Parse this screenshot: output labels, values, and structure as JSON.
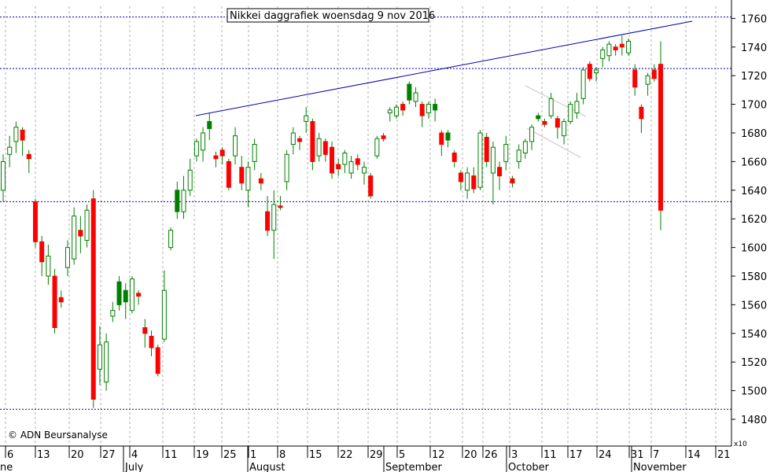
{
  "title": "Nikkei daggrafiek woensdag 9 nov 2016",
  "credit": "© ADN Beursanalyse",
  "scale_note": "x10",
  "colors": {
    "up_fill": "#ffffff",
    "up_fill_strong": "#008000",
    "down_fill": "#ff0000",
    "wick": "#008000",
    "trend": "#0000aa",
    "hline": "#0000aa",
    "grid": "#b0b0b0",
    "channel": "#c8c8c8"
  },
  "chart_data": {
    "type": "candlestick",
    "title": "Nikkei daggrafiek woensdag 9 nov 2016",
    "ylim": [
      1465,
      1770
    ],
    "y_ticks": [
      1480,
      1500,
      1520,
      1540,
      1560,
      1580,
      1600,
      1620,
      1640,
      1660,
      1680,
      1700,
      1720,
      1740,
      1760
    ],
    "x_tick_labels": [
      "6",
      "13",
      "20",
      "27",
      "4",
      "11",
      "19",
      "25",
      "1",
      "8",
      "15",
      "22",
      "29",
      "5",
      "12",
      "20",
      "26",
      "3",
      "11",
      "17",
      "24",
      "31",
      "7",
      "14",
      "21"
    ],
    "month_labels": [
      "ne",
      "July",
      "August",
      "September",
      "October",
      "November"
    ],
    "horizontal_levels": [
      1761,
      1725,
      1632,
      1487
    ],
    "trendline": {
      "from": {
        "date": "2016-07-20",
        "value": 1693
      },
      "to": {
        "date": "2016-11-16",
        "value": 1757
      }
    },
    "candles": [
      {
        "o": 1640,
        "h": 1665,
        "l": 1632,
        "c": 1660,
        "s": "up"
      },
      {
        "o": 1665,
        "h": 1678,
        "l": 1656,
        "c": 1670,
        "s": "up"
      },
      {
        "o": 1674,
        "h": 1688,
        "l": 1666,
        "c": 1684,
        "s": "up"
      },
      {
        "o": 1682,
        "h": 1684,
        "l": 1664,
        "c": 1675,
        "s": "down"
      },
      {
        "o": 1665,
        "h": 1668,
        "l": 1652,
        "c": 1662,
        "s": "down"
      },
      {
        "o": 1632,
        "h": 1634,
        "l": 1600,
        "c": 1604,
        "s": "down"
      },
      {
        "o": 1604,
        "h": 1608,
        "l": 1580,
        "c": 1590,
        "s": "down"
      },
      {
        "o": 1580,
        "h": 1602,
        "l": 1574,
        "c": 1594,
        "s": "up"
      },
      {
        "o": 1580,
        "h": 1585,
        "l": 1540,
        "c": 1544,
        "s": "down"
      },
      {
        "o": 1565,
        "h": 1570,
        "l": 1558,
        "c": 1562,
        "s": "down"
      },
      {
        "o": 1586,
        "h": 1605,
        "l": 1580,
        "c": 1600,
        "s": "up"
      },
      {
        "o": 1592,
        "h": 1628,
        "l": 1588,
        "c": 1622,
        "s": "up"
      },
      {
        "o": 1612,
        "h": 1622,
        "l": 1596,
        "c": 1608,
        "s": "down"
      },
      {
        "o": 1605,
        "h": 1630,
        "l": 1600,
        "c": 1626,
        "s": "up"
      },
      {
        "o": 1634,
        "h": 1640,
        "l": 1488,
        "c": 1494,
        "s": "down"
      },
      {
        "o": 1515,
        "h": 1545,
        "l": 1504,
        "c": 1532,
        "s": "up"
      },
      {
        "o": 1506,
        "h": 1540,
        "l": 1500,
        "c": 1534,
        "s": "up"
      },
      {
        "o": 1552,
        "h": 1562,
        "l": 1548,
        "c": 1556,
        "s": "up"
      },
      {
        "o": 1560,
        "h": 1580,
        "l": 1556,
        "c": 1576,
        "s": "up",
        "strong": true
      },
      {
        "o": 1562,
        "h": 1575,
        "l": 1550,
        "c": 1570,
        "s": "up",
        "strong": true
      },
      {
        "o": 1556,
        "h": 1580,
        "l": 1554,
        "c": 1578,
        "s": "up"
      },
      {
        "o": 1568,
        "h": 1570,
        "l": 1560,
        "c": 1566,
        "s": "down"
      },
      {
        "o": 1544,
        "h": 1550,
        "l": 1530,
        "c": 1540,
        "s": "down"
      },
      {
        "o": 1538,
        "h": 1542,
        "l": 1524,
        "c": 1530,
        "s": "down"
      },
      {
        "o": 1530,
        "h": 1532,
        "l": 1510,
        "c": 1512,
        "s": "down"
      },
      {
        "o": 1536,
        "h": 1584,
        "l": 1534,
        "c": 1570,
        "s": "up"
      },
      {
        "o": 1600,
        "h": 1614,
        "l": 1598,
        "c": 1612,
        "s": "up"
      },
      {
        "o": 1625,
        "h": 1646,
        "l": 1620,
        "c": 1640,
        "s": "up",
        "strong": true
      },
      {
        "o": 1625,
        "h": 1650,
        "l": 1620,
        "c": 1640,
        "s": "up"
      },
      {
        "o": 1640,
        "h": 1662,
        "l": 1636,
        "c": 1654,
        "s": "up"
      },
      {
        "o": 1664,
        "h": 1676,
        "l": 1660,
        "c": 1674,
        "s": "up"
      },
      {
        "o": 1668,
        "h": 1684,
        "l": 1660,
        "c": 1680,
        "s": "up"
      },
      {
        "o": 1688,
        "h": 1694,
        "l": 1675,
        "c": 1683,
        "s": "up",
        "strong": true
      },
      {
        "o": 1664,
        "h": 1667,
        "l": 1656,
        "c": 1662,
        "s": "down"
      },
      {
        "o": 1668,
        "h": 1670,
        "l": 1658,
        "c": 1664,
        "s": "down"
      },
      {
        "o": 1660,
        "h": 1662,
        "l": 1640,
        "c": 1642,
        "s": "down"
      },
      {
        "o": 1664,
        "h": 1684,
        "l": 1658,
        "c": 1678,
        "s": "up"
      },
      {
        "o": 1656,
        "h": 1664,
        "l": 1640,
        "c": 1645,
        "s": "down"
      },
      {
        "o": 1640,
        "h": 1660,
        "l": 1628,
        "c": 1656,
        "s": "up"
      },
      {
        "o": 1660,
        "h": 1676,
        "l": 1654,
        "c": 1672,
        "s": "up"
      },
      {
        "o": 1648,
        "h": 1652,
        "l": 1640,
        "c": 1645,
        "s": "down"
      },
      {
        "o": 1625,
        "h": 1636,
        "l": 1608,
        "c": 1612,
        "s": "down"
      },
      {
        "o": 1612,
        "h": 1640,
        "l": 1592,
        "c": 1630,
        "s": "up"
      },
      {
        "o": 1628,
        "h": 1636,
        "l": 1626,
        "c": 1629,
        "s": "down"
      },
      {
        "o": 1646,
        "h": 1668,
        "l": 1640,
        "c": 1665,
        "s": "up"
      },
      {
        "o": 1672,
        "h": 1684,
        "l": 1665,
        "c": 1680,
        "s": "up"
      },
      {
        "o": 1676,
        "h": 1678,
        "l": 1668,
        "c": 1674,
        "s": "down"
      },
      {
        "o": 1692,
        "h": 1698,
        "l": 1680,
        "c": 1688,
        "s": "up"
      },
      {
        "o": 1688,
        "h": 1690,
        "l": 1654,
        "c": 1660,
        "s": "down"
      },
      {
        "o": 1676,
        "h": 1680,
        "l": 1660,
        "c": 1664,
        "s": "up"
      },
      {
        "o": 1674,
        "h": 1676,
        "l": 1660,
        "c": 1665,
        "s": "down"
      },
      {
        "o": 1670,
        "h": 1674,
        "l": 1648,
        "c": 1652,
        "s": "down"
      },
      {
        "o": 1658,
        "h": 1662,
        "l": 1650,
        "c": 1655,
        "s": "down"
      },
      {
        "o": 1658,
        "h": 1668,
        "l": 1652,
        "c": 1666,
        "s": "up"
      },
      {
        "o": 1660,
        "h": 1664,
        "l": 1648,
        "c": 1652,
        "s": "up"
      },
      {
        "o": 1658,
        "h": 1665,
        "l": 1654,
        "c": 1662,
        "s": "down"
      },
      {
        "o": 1652,
        "h": 1660,
        "l": 1644,
        "c": 1656,
        "s": "up"
      },
      {
        "o": 1650,
        "h": 1652,
        "l": 1634,
        "c": 1636,
        "s": "down"
      },
      {
        "o": 1664,
        "h": 1678,
        "l": 1662,
        "c": 1676,
        "s": "up"
      },
      {
        "o": 1676,
        "h": 1680,
        "l": 1674,
        "c": 1678,
        "s": "down"
      },
      {
        "o": 1694,
        "h": 1698,
        "l": 1688,
        "c": 1696,
        "s": "up"
      },
      {
        "o": 1692,
        "h": 1700,
        "l": 1690,
        "c": 1698,
        "s": "up"
      },
      {
        "o": 1700,
        "h": 1702,
        "l": 1692,
        "c": 1696,
        "s": "down"
      },
      {
        "o": 1703,
        "h": 1716,
        "l": 1700,
        "c": 1714,
        "s": "up",
        "strong": true
      },
      {
        "o": 1702,
        "h": 1712,
        "l": 1698,
        "c": 1708,
        "s": "up"
      },
      {
        "o": 1700,
        "h": 1702,
        "l": 1684,
        "c": 1692,
        "s": "down"
      },
      {
        "o": 1694,
        "h": 1702,
        "l": 1690,
        "c": 1700,
        "s": "up"
      },
      {
        "o": 1696,
        "h": 1704,
        "l": 1688,
        "c": 1700,
        "s": "up",
        "strong": true
      },
      {
        "o": 1680,
        "h": 1682,
        "l": 1664,
        "c": 1672,
        "s": "down"
      },
      {
        "o": 1675,
        "h": 1682,
        "l": 1670,
        "c": 1680,
        "s": "up",
        "strong": true
      },
      {
        "o": 1666,
        "h": 1668,
        "l": 1656,
        "c": 1660,
        "s": "down"
      },
      {
        "o": 1652,
        "h": 1654,
        "l": 1640,
        "c": 1646,
        "s": "down"
      },
      {
        "o": 1640,
        "h": 1656,
        "l": 1634,
        "c": 1652,
        "s": "up"
      },
      {
        "o": 1650,
        "h": 1656,
        "l": 1638,
        "c": 1641,
        "s": "down"
      },
      {
        "o": 1642,
        "h": 1682,
        "l": 1640,
        "c": 1680,
        "s": "up"
      },
      {
        "o": 1677,
        "h": 1680,
        "l": 1656,
        "c": 1660,
        "s": "down"
      },
      {
        "o": 1652,
        "h": 1674,
        "l": 1630,
        "c": 1670,
        "s": "up"
      },
      {
        "o": 1656,
        "h": 1660,
        "l": 1640,
        "c": 1650,
        "s": "down"
      },
      {
        "o": 1660,
        "h": 1678,
        "l": 1654,
        "c": 1672,
        "s": "up"
      },
      {
        "o": 1648,
        "h": 1650,
        "l": 1642,
        "c": 1645,
        "s": "down"
      },
      {
        "o": 1660,
        "h": 1672,
        "l": 1655,
        "c": 1668,
        "s": "up"
      },
      {
        "o": 1666,
        "h": 1676,
        "l": 1662,
        "c": 1674,
        "s": "up"
      },
      {
        "o": 1674,
        "h": 1686,
        "l": 1668,
        "c": 1684,
        "s": "up"
      },
      {
        "o": 1690,
        "h": 1694,
        "l": 1688,
        "c": 1692,
        "s": "up",
        "strong": true
      },
      {
        "o": 1686,
        "h": 1690,
        "l": 1684,
        "c": 1688,
        "s": "down"
      },
      {
        "o": 1692,
        "h": 1708,
        "l": 1690,
        "c": 1704,
        "s": "up"
      },
      {
        "o": 1690,
        "h": 1692,
        "l": 1676,
        "c": 1684,
        "s": "down"
      },
      {
        "o": 1678,
        "h": 1690,
        "l": 1672,
        "c": 1688,
        "s": "up"
      },
      {
        "o": 1688,
        "h": 1702,
        "l": 1686,
        "c": 1700,
        "s": "up"
      },
      {
        "o": 1694,
        "h": 1708,
        "l": 1690,
        "c": 1702,
        "s": "up"
      },
      {
        "o": 1704,
        "h": 1726,
        "l": 1700,
        "c": 1724,
        "s": "up"
      },
      {
        "o": 1728,
        "h": 1730,
        "l": 1716,
        "c": 1718,
        "s": "down"
      },
      {
        "o": 1722,
        "h": 1726,
        "l": 1716,
        "c": 1724,
        "s": "up"
      },
      {
        "o": 1732,
        "h": 1740,
        "l": 1726,
        "c": 1738,
        "s": "up"
      },
      {
        "o": 1734,
        "h": 1744,
        "l": 1730,
        "c": 1742,
        "s": "up"
      },
      {
        "o": 1740,
        "h": 1742,
        "l": 1734,
        "c": 1738,
        "s": "down"
      },
      {
        "o": 1742,
        "h": 1748,
        "l": 1734,
        "c": 1740,
        "s": "down"
      },
      {
        "o": 1736,
        "h": 1746,
        "l": 1734,
        "c": 1744,
        "s": "up"
      },
      {
        "o": 1724,
        "h": 1728,
        "l": 1706,
        "c": 1712,
        "s": "down"
      },
      {
        "o": 1698,
        "h": 1700,
        "l": 1680,
        "c": 1690,
        "s": "down"
      },
      {
        "o": 1714,
        "h": 1722,
        "l": 1706,
        "c": 1720,
        "s": "up"
      },
      {
        "o": 1724,
        "h": 1728,
        "l": 1716,
        "c": 1718,
        "s": "down"
      },
      {
        "o": 1728,
        "h": 1744,
        "l": 1612,
        "c": 1626,
        "s": "down"
      }
    ]
  }
}
